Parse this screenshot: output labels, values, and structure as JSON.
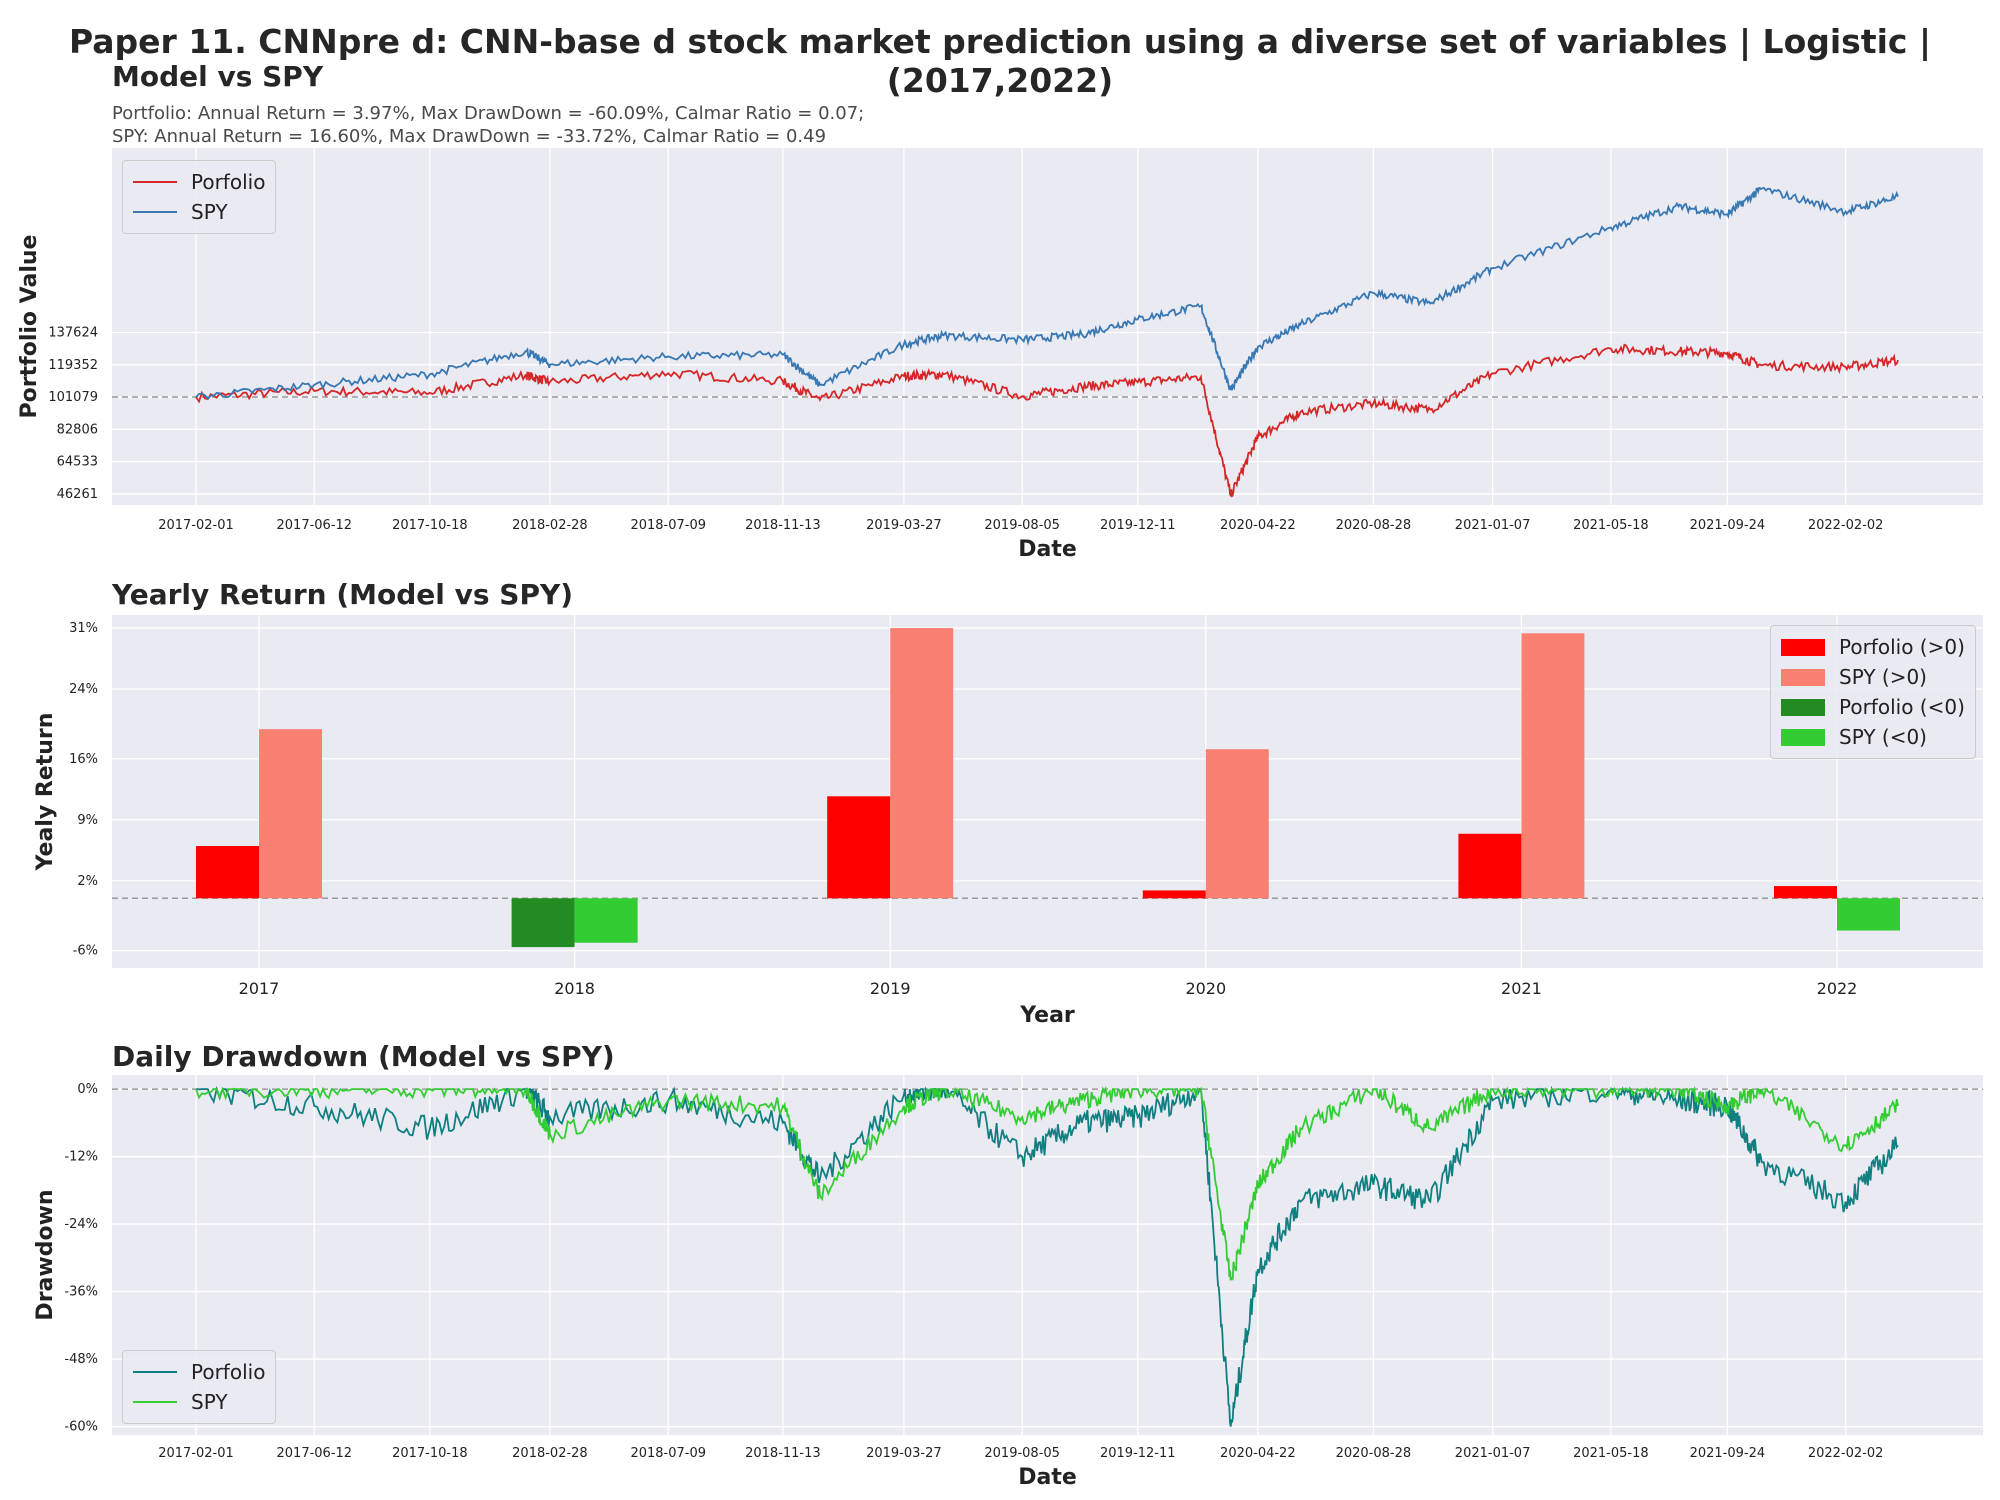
{
  "suptitle": "Paper 11. CNNpre d: CNN-base d stock market prediction using a diverse set of variables | Logistic | (2017,2022)",
  "chart_data": [
    {
      "type": "line",
      "title": "Model vs SPY",
      "subtitle_lines": [
        "Portfolio: Annual Return = 3.97%, Max DrawDown = -60.09%, Calmar Ratio = 0.07;",
        "SPY: Annual Return = 16.60%, Max DrawDown = -33.72%, Calmar Ratio = 0.49"
      ],
      "xlabel": "Date",
      "ylabel": "Portfolio Value",
      "ylim": [
        40000,
        242000
      ],
      "yticks": [
        46261,
        64533,
        82806,
        101079,
        119352,
        137624
      ],
      "xticks": [
        "2017-02-01",
        "2017-06-12",
        "2017-10-18",
        "2018-02-28",
        "2018-07-09",
        "2018-11-13",
        "2019-03-27",
        "2019-08-05",
        "2019-12-11",
        "2020-04-22",
        "2020-08-28",
        "2021-01-07",
        "2021-05-18",
        "2021-09-24",
        "2022-02-02"
      ],
      "baseline": 101079,
      "grid": true,
      "legend": "top-left",
      "series": [
        {
          "name": "Porfolio",
          "color": "#d62728",
          "x": [
            "2017-02-01",
            "2017-06-12",
            "2017-10-18",
            "2018-02-01",
            "2018-02-28",
            "2018-07-09",
            "2018-11-13",
            "2018-12-24",
            "2019-03-27",
            "2019-05-10",
            "2019-08-05",
            "2019-10-10",
            "2019-12-11",
            "2020-02-19",
            "2020-03-23",
            "2020-04-22",
            "2020-06-08",
            "2020-08-28",
            "2020-10-30",
            "2021-01-07",
            "2021-05-18",
            "2021-08-01",
            "2021-09-24",
            "2021-11-01",
            "2022-02-02",
            "2022-04-01"
          ],
          "y": [
            101079,
            104500,
            103500,
            113500,
            109500,
            114500,
            110000,
            99500,
            113000,
            114000,
            101500,
            107000,
            109500,
            112500,
            45500,
            78500,
            92500,
            97500,
            94000,
            114500,
            128500,
            127000,
            126000,
            119000,
            118000,
            122000
          ]
        },
        {
          "name": "SPY",
          "color": "#3878b3",
          "x": [
            "2017-02-01",
            "2017-06-12",
            "2017-10-18",
            "2018-02-01",
            "2018-02-28",
            "2018-07-09",
            "2018-11-13",
            "2018-12-24",
            "2019-03-27",
            "2019-05-10",
            "2019-08-05",
            "2019-10-10",
            "2019-12-11",
            "2020-02-19",
            "2020-03-23",
            "2020-04-22",
            "2020-06-08",
            "2020-08-28",
            "2020-10-30",
            "2021-01-07",
            "2021-05-18",
            "2021-08-01",
            "2021-09-24",
            "2021-11-01",
            "2022-02-02",
            "2022-04-01"
          ],
          "y": [
            101079,
            108000,
            114000,
            127000,
            119500,
            124000,
            125000,
            108000,
            131000,
            136000,
            133500,
            136500,
            145000,
            152500,
            105000,
            129500,
            142000,
            160000,
            154000,
            174000,
            197000,
            209000,
            204500,
            219000,
            206000,
            214500
          ]
        }
      ]
    },
    {
      "type": "bar",
      "title": "Yearly Return (Model vs SPY)",
      "xlabel": "Year",
      "ylabel": "Yealy Return",
      "categories": [
        "2017",
        "2018",
        "2019",
        "2020",
        "2021",
        "2022"
      ],
      "yticks": [
        -6,
        2,
        9,
        16,
        24,
        31
      ],
      "ytick_labels": [
        "-6%",
        "2%",
        "9%",
        "16%",
        "24%",
        "31%"
      ],
      "ylim": [
        -8,
        32.5
      ],
      "grid": true,
      "legend": "top-right",
      "series": [
        {
          "name": "Porfolio",
          "values": [
            6.0,
            -5.6,
            11.7,
            0.9,
            7.4,
            1.4
          ]
        },
        {
          "name": "SPY",
          "values": [
            19.4,
            -5.1,
            31.0,
            17.1,
            30.4,
            -3.7
          ]
        }
      ],
      "legend_entries": [
        {
          "label": "Porfolio (>0)",
          "color": "#ff0000"
        },
        {
          "label": "SPY (>0)",
          "color": "#fa8072"
        },
        {
          "label": "Porfolio (<0)",
          "color": "#228b22"
        },
        {
          "label": "SPY (<0)",
          "color": "#32cd32"
        }
      ]
    },
    {
      "type": "line",
      "title": "Daily Drawdown (Model vs SPY)",
      "xlabel": "Date",
      "ylabel": "Drawdown",
      "ylim": [
        -61.5,
        2.5
      ],
      "yticks": [
        0,
        -12,
        -24,
        -36,
        -48,
        -60
      ],
      "ytick_labels": [
        "0%",
        "-12%",
        "-24%",
        "-36%",
        "-48%",
        "-60%"
      ],
      "xticks": [
        "2017-02-01",
        "2017-06-12",
        "2017-10-18",
        "2018-02-28",
        "2018-07-09",
        "2018-11-13",
        "2019-03-27",
        "2019-08-05",
        "2019-12-11",
        "2020-04-22",
        "2020-08-28",
        "2021-01-07",
        "2021-05-18",
        "2021-09-24",
        "2022-02-02"
      ],
      "grid": true,
      "legend": "bottom-left",
      "series": [
        {
          "name": "Porfolio",
          "color": "#107f80",
          "x": [
            "2017-02-01",
            "2017-06-12",
            "2017-10-18",
            "2018-02-01",
            "2018-02-28",
            "2018-07-09",
            "2018-11-13",
            "2018-12-24",
            "2019-03-27",
            "2019-05-10",
            "2019-08-05",
            "2019-10-10",
            "2019-12-11",
            "2020-02-19",
            "2020-03-23",
            "2020-04-22",
            "2020-06-08",
            "2020-08-28",
            "2020-10-30",
            "2021-01-07",
            "2021-05-18",
            "2021-08-01",
            "2021-09-24",
            "2021-11-01",
            "2022-02-02",
            "2022-04-01"
          ],
          "y": [
            0,
            -3,
            -7,
            0,
            -5,
            -2,
            -6,
            -16,
            -1,
            0,
            -12,
            -6,
            -5,
            0,
            -60,
            -32,
            -20,
            -17,
            -20,
            -2,
            0,
            -2,
            -3,
            -13,
            -20,
            -10
          ]
        },
        {
          "name": "SPY",
          "color": "#32cd32",
          "x": [
            "2017-02-01",
            "2017-06-12",
            "2017-10-18",
            "2018-02-01",
            "2018-02-28",
            "2018-07-09",
            "2018-11-13",
            "2018-12-24",
            "2019-03-27",
            "2019-05-10",
            "2019-08-05",
            "2019-10-10",
            "2019-12-11",
            "2020-02-19",
            "2020-03-23",
            "2020-04-22",
            "2020-06-08",
            "2020-08-28",
            "2020-10-30",
            "2021-01-07",
            "2021-05-18",
            "2021-08-01",
            "2021-09-24",
            "2021-11-01",
            "2022-02-02",
            "2022-04-01"
          ],
          "y": [
            0,
            0,
            0,
            0,
            -8,
            -2,
            -3,
            -19,
            -3,
            0,
            -5,
            -2,
            0,
            0,
            -34,
            -17,
            -7,
            0,
            -7,
            0,
            0,
            0,
            -3,
            0,
            -10,
            -3
          ]
        }
      ]
    }
  ]
}
